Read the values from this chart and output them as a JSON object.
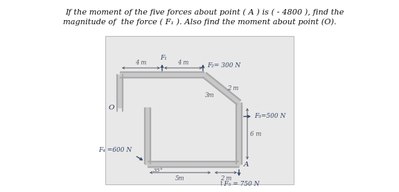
{
  "title_line1": "If the moment of the five forces about point ( A ) is ( - 4800 ), find the",
  "title_line2": "magnitude of  the force ( F₁ ). Also find the moment about point (O).",
  "outer_bg": "#ffffff",
  "diagram_bg": "#e8e8e8",
  "structure_color": "#aaaaaa",
  "dim_color": "#555566",
  "arrow_color": "#334466",
  "text_color": "#111111",
  "label_color": "#223355",
  "forces": {
    "F1_label": "F₁",
    "F2_label": "F₂= 300 N",
    "F3_label": "F₃=500 N",
    "F4_label": "F₄ =600 N",
    "F5_label": "↑F₅ = 750 N"
  },
  "dims": {
    "top_left": "4 m",
    "top_right": "4 m",
    "diag": "2 m",
    "middle": "3m",
    "right_vert": "6 m",
    "bot_left": "5m",
    "bot_right": "2 m",
    "angle": "35°"
  },
  "points": {
    "O": "O",
    "A": "A"
  }
}
